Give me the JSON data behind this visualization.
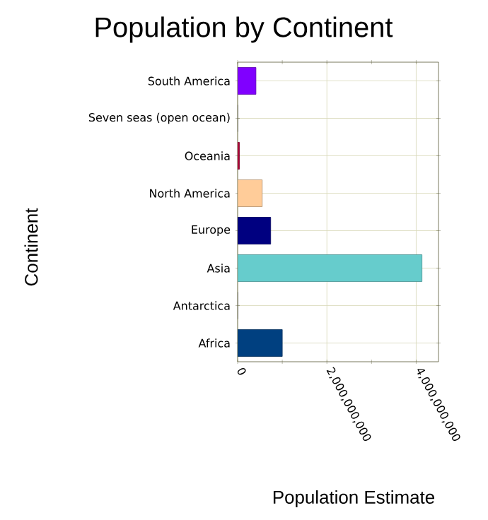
{
  "chart_data": {
    "type": "bar",
    "orientation": "horizontal",
    "title": "Population by Continent",
    "xlabel": "Population Estimate",
    "ylabel": "Continent",
    "categories": [
      "South America",
      "Seven seas (open ocean)",
      "Oceania",
      "North America",
      "Europe",
      "Asia",
      "Antarctica",
      "Africa"
    ],
    "values": [
      410000000,
      0,
      40000000,
      550000000,
      740000000,
      4130000000,
      0,
      1000000000
    ],
    "colors": [
      "#8000ff",
      "#808080",
      "#b0003a",
      "#ffcc99",
      "#000080",
      "#66cccc",
      "#808080",
      "#004080"
    ],
    "xlim": [
      0,
      4500000000
    ],
    "xticks": [
      {
        "value": 0,
        "label": "0"
      },
      {
        "value": 2000000000,
        "label": "2,000,000,000"
      },
      {
        "value": 4000000000,
        "label": "4,000,000,000"
      }
    ],
    "grid": true
  }
}
